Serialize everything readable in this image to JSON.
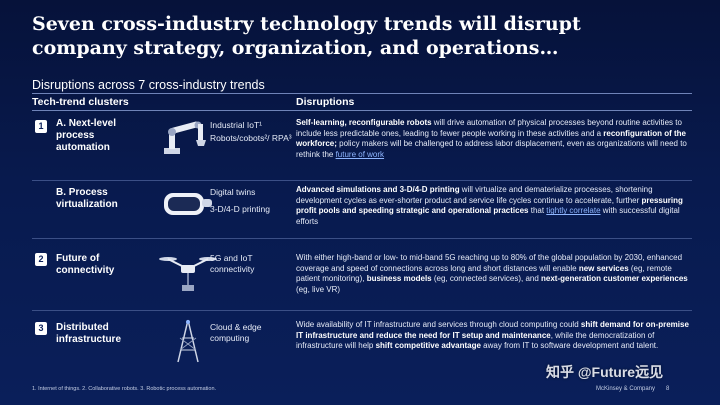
{
  "slide": {
    "title": "Seven cross-industry technology trends will disrupt company strategy, organization, and operations…",
    "subtitle": "Disruptions across 7 cross-industry trends",
    "col_left": "Tech-trend clusters",
    "col_right": "Disruptions"
  },
  "rows": [
    {
      "badge": "1",
      "cluster": "A. Next-level process automation",
      "tech": [
        "Industrial IoT¹",
        "Robots/cobots²/ RPA³"
      ],
      "desc_html": "<b>Self-learning, reconfigurable robots</b> will drive automation of physical processes beyond routine activities to include less predictable ones, leading to fewer people working in these activities and a <b>reconfiguration of the workforce;</b> policy makers will be challenged to address labor displacement, even as organizations will need to rethink the <span class=\"link\">future of work</span>"
    },
    {
      "badge": "",
      "cluster": "B. Process virtualization",
      "tech": [
        "Digital twins",
        "3-D/4-D printing"
      ],
      "desc_html": "<b>Advanced simulations and 3-D/4-D printing</b> will virtualize and dematerialize processes, shortening development cycles as ever-shorter product and service life cycles continue to accelerate, further <b>pressuring profit pools and speeding strategic and operational practices</b> that <span class=\"link\">tightly correlate</span> with successful digital efforts"
    },
    {
      "badge": "2",
      "cluster": "Future of connectivity",
      "tech": [
        "5G and IoT connectivity"
      ],
      "desc_html": "With either high-band or low- to mid-band 5G reaching up to 80% of the global population by 2030, enhanced coverage and speed of connections across long and short distances will enable <b>new services</b> (eg, remote patient monitoring), <b>business models</b> (eg, connected services), and <b>next-generation customer experiences</b> (eg, live VR)"
    },
    {
      "badge": "3",
      "cluster": "Distributed infrastructure",
      "tech": [
        "Cloud &amp; edge computing"
      ],
      "desc_html": "Wide availability of IT infrastructure and services through cloud computing could <b>shift demand for on-premise IT infrastructure and reduce the need for IT setup and maintenance</b>, while the democratization of infrastructure will help <b>shift competitive advantage</b> away from IT to software development and talent."
    }
  ],
  "footer": {
    "footnote": "1. Internet of things. 2. Collaborative robots. 3. Robotic process automation.",
    "brand": "McKinsey & Company",
    "page": "8",
    "watermark": "知乎 @Future远见"
  }
}
